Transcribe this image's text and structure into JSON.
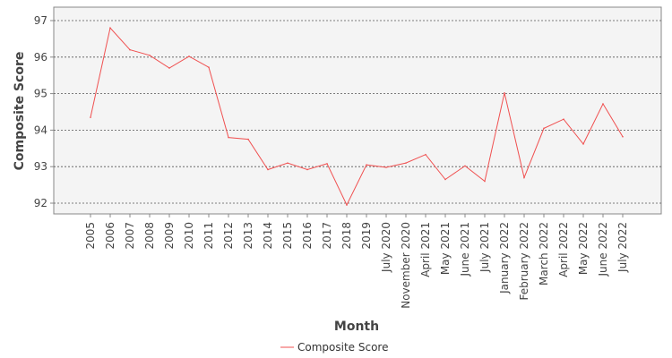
{
  "chart_data": {
    "type": "line",
    "xlabel": "Month",
    "ylabel": "Composite Score",
    "ylim": [
      91.8,
      97.2
    ],
    "yticks": [
      92,
      93,
      94,
      95,
      96,
      97
    ],
    "grid": true,
    "legend_position": "bottom-center",
    "categories": [
      "2005",
      "2006",
      "2007",
      "2008",
      "2009",
      "2010",
      "2011",
      "2012",
      "2013",
      "2014",
      "2015",
      "2016",
      "2017",
      "2018",
      "2019",
      "July 2020",
      "November 2020",
      "April 2021",
      "May 2021",
      "June 2021",
      "July 2021",
      "January 2022",
      "February 2022",
      "March 2022",
      "April 2022",
      "May 2022",
      "June 2022",
      "July 2022"
    ],
    "series": [
      {
        "name": "Composite Score",
        "color": "#f05050",
        "values": [
          94.35,
          96.8,
          96.2,
          96.05,
          95.7,
          96.02,
          95.72,
          93.8,
          93.75,
          92.92,
          93.1,
          92.92,
          93.08,
          91.95,
          93.05,
          92.98,
          93.1,
          93.33,
          92.65,
          93.02,
          92.6,
          95.02,
          92.7,
          94.05,
          94.3,
          93.62,
          94.72,
          93.82
        ]
      }
    ]
  }
}
